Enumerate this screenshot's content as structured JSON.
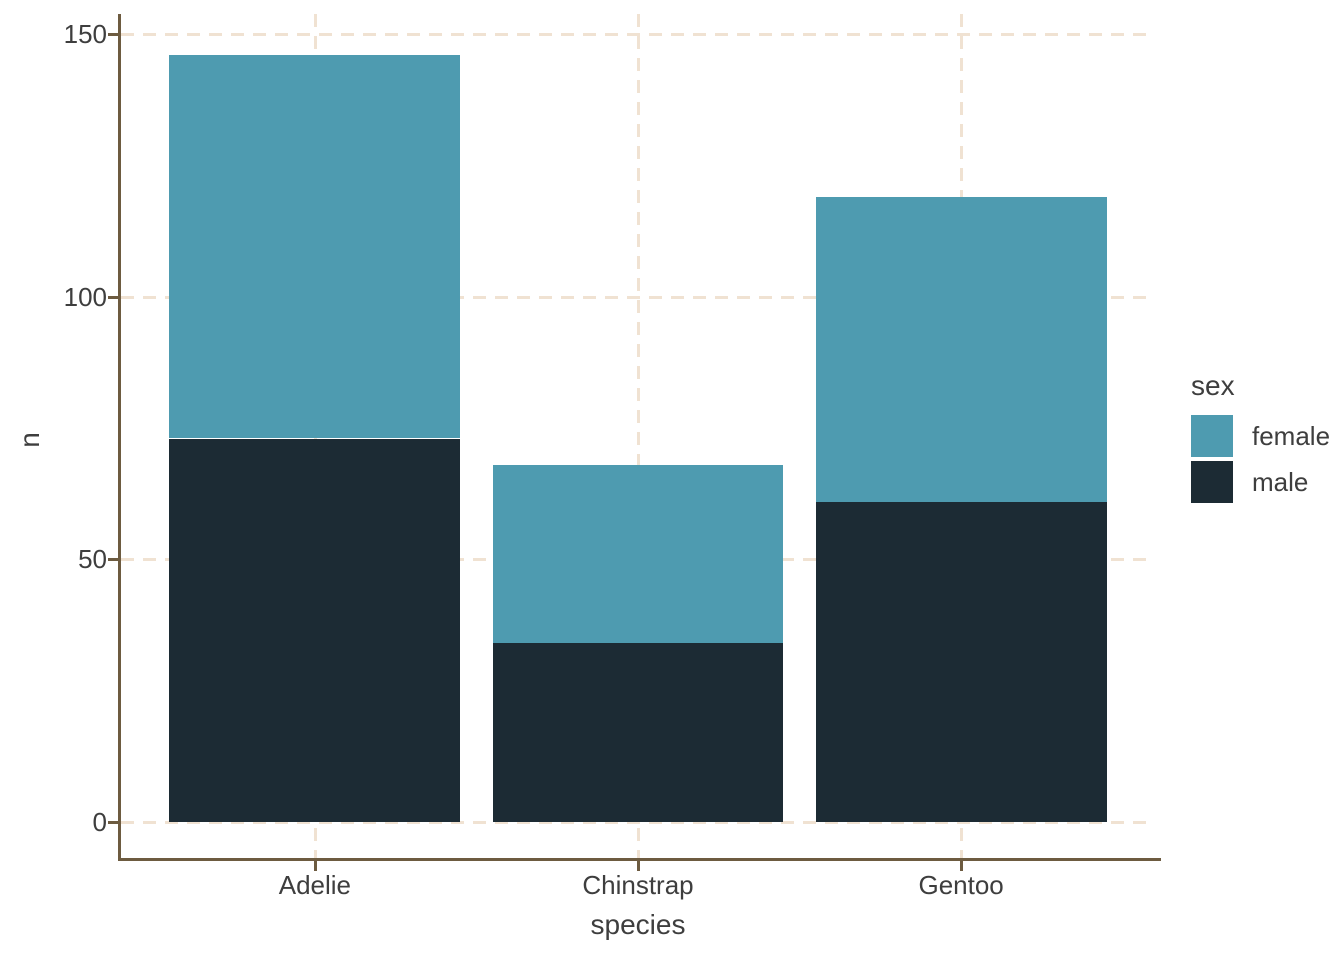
{
  "chart_data": {
    "type": "bar",
    "stacked": true,
    "categories": [
      "Adelie",
      "Chinstrap",
      "Gentoo"
    ],
    "series": [
      {
        "name": "male",
        "values": [
          73,
          34,
          61
        ],
        "color": "#1C2B34"
      },
      {
        "name": "female",
        "values": [
          73,
          34,
          58
        ],
        "color": "#4E9BB0"
      }
    ],
    "stack_order_bottom_to_top": [
      "male",
      "female"
    ],
    "totals": [
      146,
      68,
      119
    ],
    "xlabel": "species",
    "ylabel": "n",
    "yticks": [
      0,
      50,
      100,
      150
    ],
    "ylim": [
      0,
      157.5
    ],
    "grid": "dashed-major-both",
    "legend": {
      "title": "sex",
      "position": "right",
      "entries": [
        {
          "label": "female",
          "color": "#4E9BB0"
        },
        {
          "label": "male",
          "color": "#1C2B34"
        }
      ]
    }
  },
  "style": {
    "background": "#FFFFFF",
    "grid_color": "#F0E2D2",
    "axis_color": "#6D5B40",
    "text_color": "#3E3E3E",
    "female_color": "#4E9BB0",
    "male_color": "#1C2B34"
  }
}
